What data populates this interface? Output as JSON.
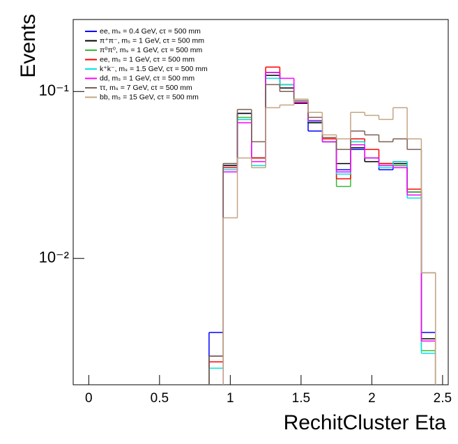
{
  "chart_data": {
    "type": "histogram",
    "x_label": "RechitCluster Eta",
    "y_label": "Events",
    "log_y": true,
    "legend_position": "upper left",
    "bins": [
      0.85,
      0.95,
      1.05,
      1.15,
      1.25,
      1.35,
      1.45,
      1.55,
      1.65,
      1.75,
      1.85,
      1.95,
      2.05,
      2.15,
      2.25,
      2.35,
      2.45
    ],
    "xlim": [
      -0.11,
      2.54
    ],
    "ylim": [
      0.00175,
      0.27
    ],
    "xticks": [
      0,
      0.5,
      1,
      1.5,
      2,
      2.5
    ],
    "yticks": [
      {
        "value": 0.01,
        "label": "10⁻²"
      },
      {
        "value": 0.1,
        "label": "10⁻¹"
      }
    ],
    "series": [
      {
        "name": "ee, mₛ = 0.4 GeV, cτ = 500 mm",
        "color": "#0000ff",
        "values": [
          0.0036,
          0.036,
          0.074,
          0.04,
          0.13,
          0.11,
          0.086,
          0.058,
          0.05,
          0.034,
          0.045,
          0.04,
          0.034,
          0.036,
          0.025,
          0.0036
        ]
      },
      {
        "name": "π⁺π⁻, mₛ = 1 GeV, cτ = 500 mm",
        "color": "#000000",
        "values": [
          0.0026,
          0.036,
          0.074,
          0.04,
          0.125,
          0.105,
          0.085,
          0.065,
          0.05,
          0.037,
          0.046,
          0.038,
          0.037,
          0.037,
          0.025,
          0.0033
        ]
      },
      {
        "name": "π⁰π⁰, mₛ = 1 GeV, cτ = 500 mm",
        "color": "#33bb33",
        "values": [
          0.0022,
          0.037,
          0.07,
          0.04,
          0.13,
          0.11,
          0.088,
          0.066,
          0.05,
          0.027,
          0.05,
          0.04,
          0.036,
          0.036,
          0.025,
          0.0028
        ]
      },
      {
        "name": "ee, mₛ = 1 GeV, cτ = 500 mm",
        "color": "#ff0000",
        "values": [
          0.0024,
          0.035,
          0.068,
          0.04,
          0.14,
          0.11,
          0.086,
          0.067,
          0.052,
          0.03,
          0.052,
          0.045,
          0.037,
          0.038,
          0.026,
          0.0032
        ]
      },
      {
        "name": "k⁺k⁻, mₛ = 1.5 GeV, cτ = 500 mm",
        "color": "#00e5e5",
        "values": [
          0.0022,
          0.034,
          0.068,
          0.036,
          0.12,
          0.11,
          0.088,
          0.066,
          0.05,
          0.032,
          0.05,
          0.04,
          0.035,
          0.038,
          0.023,
          0.0027
        ]
      },
      {
        "name": "dd, mₛ = 1 GeV, cτ = 500 mm",
        "color": "#ff00ff",
        "values": [
          0.0017,
          0.033,
          0.065,
          0.038,
          0.13,
          0.12,
          0.086,
          0.067,
          0.05,
          0.033,
          0.048,
          0.04,
          0.036,
          0.035,
          0.024,
          0.0032
        ]
      },
      {
        "name": "ττ, mₛ = 7 GeV, cτ = 500 mm",
        "color": "#7d5f55",
        "values": [
          0.0026,
          0.037,
          0.078,
          0.05,
          0.11,
          0.1,
          0.088,
          0.07,
          0.053,
          0.045,
          0.058,
          0.055,
          0.05,
          0.052,
          0.045,
          0.0082
        ]
      },
      {
        "name": "bb, mₛ = 15 GeV, cτ = 500 mm",
        "color": "#c4a484",
        "values": [
          0.0015,
          0.0175,
          0.04,
          0.035,
          0.08,
          0.083,
          0.09,
          0.075,
          0.055,
          0.052,
          0.075,
          0.072,
          0.068,
          0.08,
          0.052,
          0.0082
        ]
      }
    ]
  }
}
